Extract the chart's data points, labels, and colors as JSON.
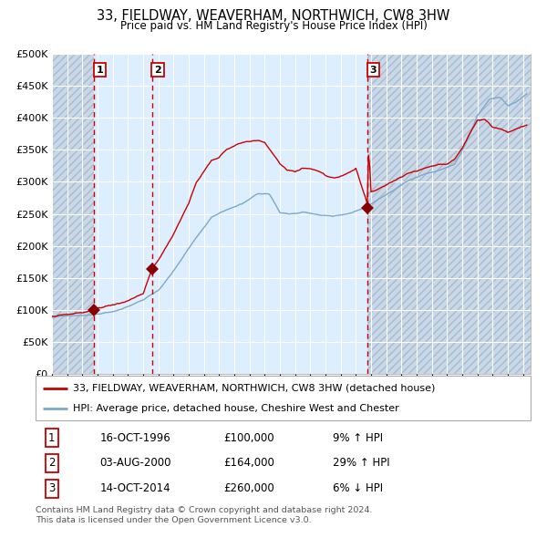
{
  "title": "33, FIELDWAY, WEAVERHAM, NORTHWICH, CW8 3HW",
  "subtitle": "Price paid vs. HM Land Registry's House Price Index (HPI)",
  "sale_label": "33, FIELDWAY, WEAVERHAM, NORTHWICH, CW8 3HW (detached house)",
  "hpi_label": "HPI: Average price, detached house, Cheshire West and Chester",
  "transactions": [
    {
      "num": 1,
      "date_str": "16-OCT-1996",
      "year": 1996,
      "month": 10,
      "price": 100000,
      "pct_str": "9% ↑ HPI"
    },
    {
      "num": 2,
      "date_str": "03-AUG-2000",
      "year": 2000,
      "month": 8,
      "price": 164000,
      "pct_str": "29% ↑ HPI"
    },
    {
      "num": 3,
      "date_str": "14-OCT-2014",
      "year": 2014,
      "month": 10,
      "price": 260000,
      "pct_str": "6% ↓ HPI"
    }
  ],
  "price_strs": [
    "£100,000",
    "£164,000",
    "£260,000"
  ],
  "ylim": [
    0,
    500000
  ],
  "yticks": [
    0,
    50000,
    100000,
    150000,
    200000,
    250000,
    300000,
    350000,
    400000,
    450000,
    500000
  ],
  "xlim_start": 1994.0,
  "xlim_end": 2025.5,
  "line_color_sale": "#cc0000",
  "line_color_hpi": "#7aaac8",
  "dot_color": "#880000",
  "vline_color": "#cc0000",
  "bg_plain": "#ddeeff",
  "bg_hatch_base": "#c8d8ea",
  "grid_color": "#ffffff",
  "footer_line1": "Contains HM Land Registry data © Crown copyright and database right 2024.",
  "footer_line2": "This data is licensed under the Open Government Licence v3.0."
}
